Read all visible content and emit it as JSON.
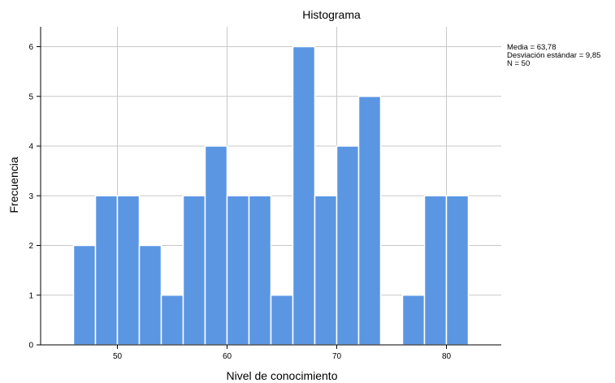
{
  "chart_data": {
    "type": "bar",
    "title": "Histograma",
    "xlabel": "Nivel de conocimiento",
    "ylabel": "Frecuencia",
    "bin_width": 2,
    "bins": [
      {
        "start": 46,
        "end": 48,
        "value": 2
      },
      {
        "start": 48,
        "end": 50,
        "value": 3
      },
      {
        "start": 50,
        "end": 52,
        "value": 3
      },
      {
        "start": 52,
        "end": 54,
        "value": 2
      },
      {
        "start": 54,
        "end": 56,
        "value": 1
      },
      {
        "start": 56,
        "end": 58,
        "value": 3
      },
      {
        "start": 58,
        "end": 60,
        "value": 4
      },
      {
        "start": 60,
        "end": 62,
        "value": 3
      },
      {
        "start": 62,
        "end": 64,
        "value": 3
      },
      {
        "start": 64,
        "end": 66,
        "value": 1
      },
      {
        "start": 66,
        "end": 68,
        "value": 6
      },
      {
        "start": 68,
        "end": 70,
        "value": 3
      },
      {
        "start": 70,
        "end": 72,
        "value": 4
      },
      {
        "start": 72,
        "end": 74,
        "value": 5
      },
      {
        "start": 74,
        "end": 76,
        "value": 0
      },
      {
        "start": 76,
        "end": 78,
        "value": 1
      },
      {
        "start": 78,
        "end": 80,
        "value": 3
      },
      {
        "start": 80,
        "end": 82,
        "value": 3
      }
    ],
    "xlim": [
      43,
      85
    ],
    "ylim": [
      0,
      6.4
    ],
    "x_ticks": [
      50,
      60,
      70,
      80
    ],
    "y_ticks": [
      0,
      1,
      2,
      3,
      4,
      5,
      6
    ],
    "grid": true,
    "bar_color": "#5b96e3",
    "bar_edge_color": "#ffffff",
    "grid_color": "#c8c8c8",
    "stats": {
      "mean": "Media = 63,78",
      "std": "Desviación estándar = 9,85",
      "n": "N = 50"
    }
  }
}
